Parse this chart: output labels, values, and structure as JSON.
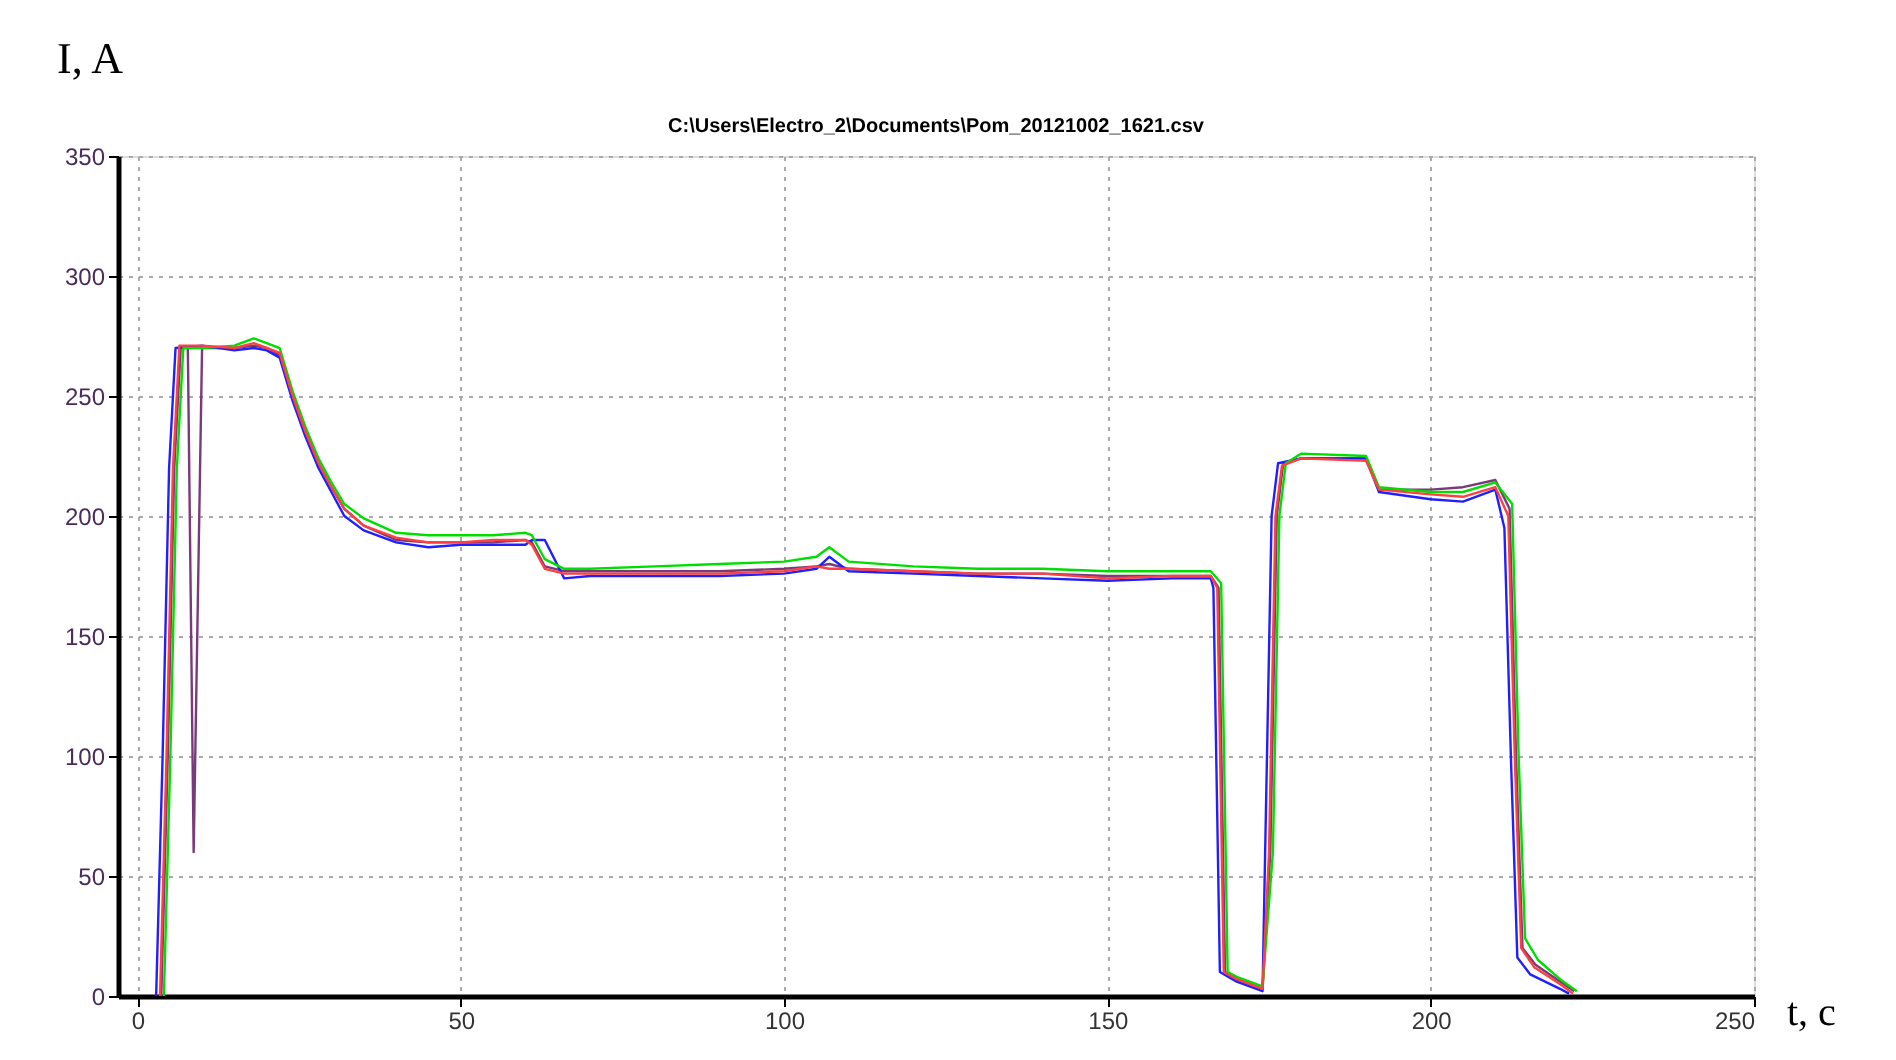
{
  "chart_data": {
    "type": "line",
    "title": "C:\\Users\\Electro_2\\Documents\\Pom_20121002_1621.csv",
    "xlabel": "t, c",
    "ylabel": "I, A",
    "xlim": [
      -3,
      250
    ],
    "ylim": [
      0,
      350
    ],
    "xticks": [
      0,
      50,
      100,
      150,
      200,
      250
    ],
    "yticks": [
      0,
      50,
      100,
      150,
      200,
      250,
      300,
      350
    ],
    "grid": true,
    "marker": "none",
    "line_style": "solid",
    "series": [
      {
        "color": "#7a3a7a",
        "x": [
          3.7,
          4.7,
          5.7,
          6.7,
          7.8,
          8.7,
          10,
          15,
          18,
          20,
          22,
          24,
          26,
          28,
          30,
          32,
          35,
          40,
          45,
          50,
          55,
          60,
          61,
          63,
          66,
          70,
          80,
          90,
          100,
          105,
          107,
          110,
          120,
          130,
          140,
          150,
          160,
          166,
          167.2,
          168.2,
          170,
          174,
          175.2,
          176.2,
          177.2,
          180,
          190,
          192,
          200,
          205,
          210,
          212.2,
          213.2,
          214.2,
          216.2,
          220,
          222.2
        ],
        "values": [
          0,
          100,
          220,
          270,
          270,
          60,
          270,
          270,
          271,
          270,
          267,
          250,
          235,
          222,
          212,
          203,
          196,
          190,
          189,
          189,
          189,
          190,
          189,
          179,
          177,
          177,
          177,
          177,
          178,
          179,
          180,
          178,
          177,
          176,
          176,
          175,
          175,
          175,
          170,
          10,
          7,
          3,
          60,
          200,
          222,
          224,
          224,
          211,
          211,
          212,
          215,
          203,
          100,
          20,
          13,
          6,
          2
        ]
      },
      {
        "color": "#2020ff",
        "x": [
          2.9,
          3.9,
          4.9,
          5.9,
          10,
          15,
          18,
          20,
          22,
          24,
          26,
          28,
          30,
          32,
          35,
          40,
          45,
          50,
          55,
          60,
          61,
          63,
          66,
          70,
          80,
          90,
          100,
          105,
          107,
          110,
          120,
          130,
          140,
          150,
          160,
          166,
          166.4,
          167.4,
          170,
          174,
          174.4,
          175.4,
          176.4,
          180,
          190,
          192,
          200,
          205,
          210,
          211.4,
          212.4,
          213.4,
          215.4,
          220,
          221.4
        ],
        "values": [
          0,
          100,
          220,
          270,
          271,
          269,
          270,
          269,
          266,
          248,
          233,
          220,
          210,
          200,
          194,
          189,
          187,
          188,
          188,
          188,
          190,
          190,
          174,
          175,
          175,
          175,
          176,
          178,
          183,
          177,
          176,
          175,
          174,
          173,
          174,
          174,
          170,
          10,
          6,
          2,
          60,
          200,
          222,
          224,
          224,
          210,
          207,
          206,
          211,
          195,
          100,
          16,
          9,
          3,
          1
        ]
      },
      {
        "color": "#00dd00",
        "x": [
          4.1,
          5.1,
          6.1,
          7.1,
          10,
          15,
          18,
          20,
          22,
          24,
          26,
          28,
          30,
          32,
          35,
          40,
          45,
          50,
          55,
          60,
          61,
          63,
          66,
          70,
          80,
          90,
          100,
          105,
          107,
          110,
          120,
          130,
          140,
          150,
          160,
          166,
          167.6,
          168.6,
          170,
          174,
          175.6,
          176.6,
          177.6,
          180,
          190,
          192,
          200,
          205,
          210,
          212.6,
          213.6,
          214.6,
          216.6,
          220,
          222.6
        ],
        "values": [
          0,
          100,
          220,
          270,
          270,
          271,
          274,
          272,
          270,
          252,
          237,
          224,
          214,
          205,
          199,
          193,
          192,
          192,
          192,
          193,
          192,
          182,
          178,
          178,
          179,
          180,
          181,
          183,
          187,
          181,
          179,
          178,
          178,
          177,
          177,
          177,
          172,
          10,
          8,
          4,
          60,
          200,
          222,
          226,
          225,
          212,
          210,
          210,
          214,
          205,
          100,
          24,
          15,
          7,
          2
        ]
      },
      {
        "color": "#ff4040",
        "x": [
          3.5,
          4.5,
          5.5,
          6.5,
          10,
          15,
          18,
          20,
          22,
          24,
          26,
          28,
          30,
          32,
          35,
          40,
          45,
          50,
          55,
          60,
          61,
          63,
          66,
          70,
          80,
          90,
          100,
          105,
          107,
          110,
          120,
          130,
          140,
          150,
          160,
          166,
          167,
          168,
          170,
          174,
          175,
          176,
          177,
          180,
          190,
          192,
          200,
          205,
          210,
          212,
          213,
          214,
          216,
          220,
          222
        ],
        "values": [
          0,
          100,
          220,
          271,
          271,
          270,
          272,
          270,
          268,
          250,
          235,
          222,
          212,
          203,
          196,
          191,
          189,
          189,
          190,
          190,
          188,
          178,
          176,
          176,
          176,
          176,
          177,
          179,
          178,
          178,
          177,
          176,
          176,
          174,
          175,
          175,
          170,
          10,
          7,
          3,
          60,
          200,
          221,
          224,
          223,
          211,
          209,
          208,
          212,
          200,
          100,
          20,
          12,
          5,
          1
        ]
      }
    ]
  }
}
